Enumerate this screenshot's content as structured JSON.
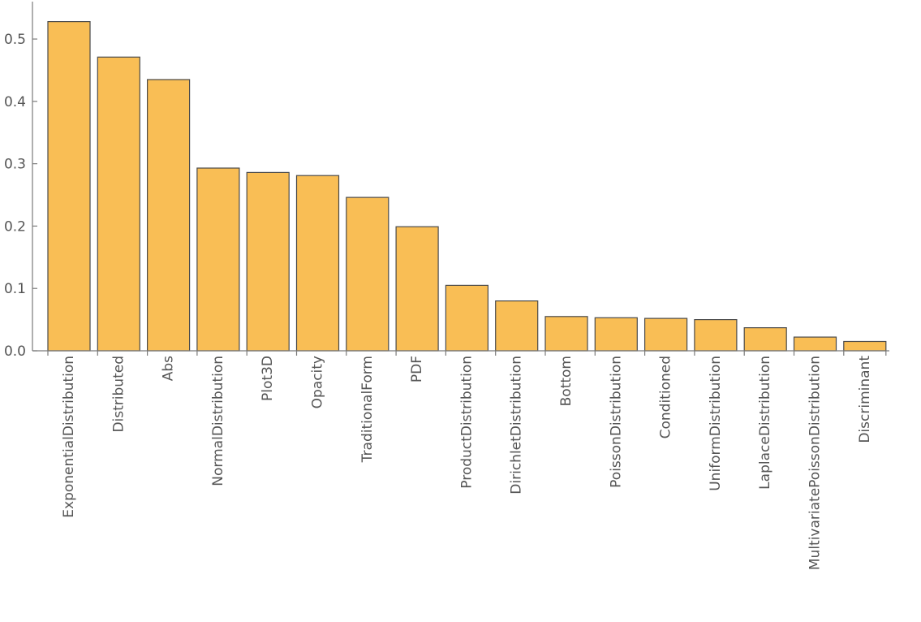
{
  "chart_data": {
    "type": "bar",
    "title": "",
    "xlabel": "",
    "ylabel": "",
    "ylim": [
      0,
      0.56
    ],
    "yticks": [
      "0.0",
      "0.1",
      "0.2",
      "0.3",
      "0.4",
      "0.5"
    ],
    "ytick_values": [
      0,
      0.1,
      0.2,
      0.3,
      0.4,
      0.5
    ],
    "grid": false,
    "bar_color": "#f9be55",
    "bar_edge_color": "#4a4a4a",
    "categories": [
      "ExponentialDistribution",
      "Distributed",
      "Abs",
      "NormalDistribution",
      "Plot3D",
      "Opacity",
      "TraditionalForm",
      "PDF",
      "ProductDistribution",
      "DirichletDistribution",
      "Bottom",
      "PoissonDistribution",
      "Conditioned",
      "UniformDistribution",
      "LaplaceDistribution",
      "MultivariatePoissonDistribution",
      "Discriminant"
    ],
    "values": [
      0.528,
      0.471,
      0.435,
      0.293,
      0.286,
      0.281,
      0.246,
      0.199,
      0.105,
      0.08,
      0.055,
      0.053,
      0.052,
      0.05,
      0.037,
      0.022,
      0.015
    ]
  }
}
